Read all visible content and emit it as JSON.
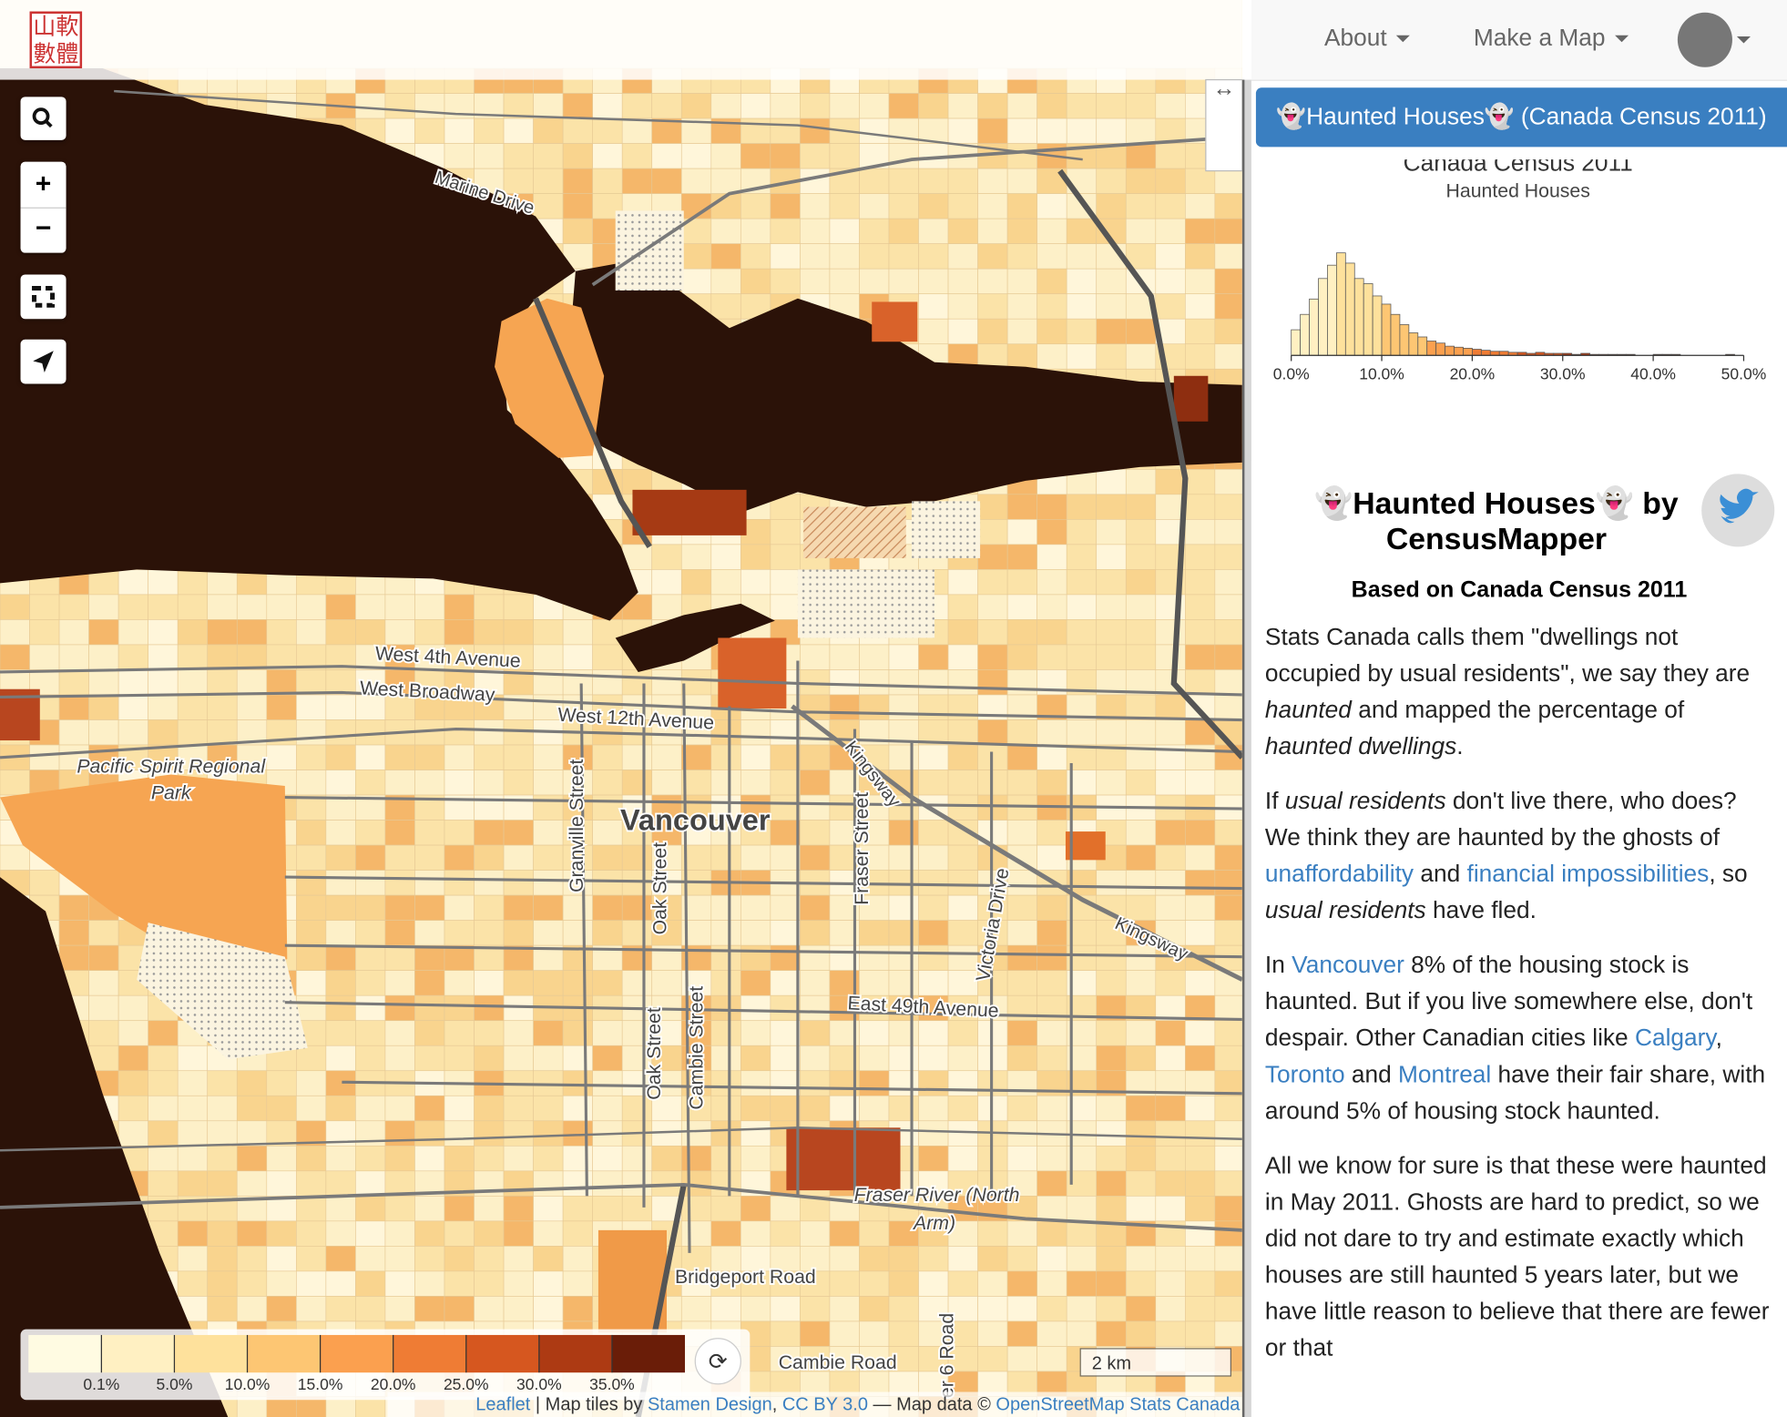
{
  "nav": {
    "logo": [
      "山軟",
      "數體"
    ],
    "menu": [
      "About",
      "Make a Map"
    ]
  },
  "map": {
    "labels": [
      "Marine Drive",
      "West 4th Avenue",
      "West Broadway",
      "West 12th Avenue",
      "Kingsway",
      "Kingsway",
      "Pacific Spirit Regional",
      "Park",
      "Vancouver",
      "Granville Street",
      "Oak Street",
      "Fraser Street",
      "Victoria Drive",
      "East 49th Avenue",
      "Oak Street",
      "Cambie Street",
      "Fraser River (North",
      "Arm)",
      "Bridgeport Road",
      "Cambie Road",
      "er 6 Road"
    ],
    "scale": "2 km",
    "attribution": [
      "Leaflet",
      " | Map tiles by ",
      "Stamen Design",
      ", ",
      "CC BY 3.0",
      " — Map data © ",
      "OpenStreetMap Stats Canada"
    ]
  },
  "legend": {
    "colors": [
      "#fffbe2",
      "#fff0c2",
      "#fee19c",
      "#fdc673",
      "#fba04f",
      "#ef7c34",
      "#d6571f",
      "#ad3a13",
      "#6a1d08"
    ],
    "breaks": [
      {
        "value": 0.1,
        "label": "0.1%"
      },
      {
        "value": 5,
        "label": "5.0%"
      },
      {
        "value": 10,
        "label": "10.0%"
      },
      {
        "value": 15,
        "label": "15.0%"
      },
      {
        "value": 20,
        "label": "20.0%"
      },
      {
        "value": 25,
        "label": "25.0%"
      },
      {
        "value": 30,
        "label": "30.0%"
      },
      {
        "value": 35,
        "label": "35.0%"
      }
    ]
  },
  "sidebar": {
    "button": "👻Haunted Houses👻 (Canada Census 2011)"
  },
  "chart_data": {
    "type": "histogram",
    "title": "Canada Census 2011",
    "subtitle": "Haunted Houses",
    "bins": [
      0,
      1,
      2,
      3,
      4,
      5,
      6,
      7,
      8,
      9,
      10,
      11,
      12,
      13,
      14,
      15,
      16,
      17,
      18,
      19,
      20,
      21,
      22,
      23,
      24,
      25,
      26,
      27,
      28,
      29,
      30,
      31,
      32,
      33,
      34,
      35,
      36,
      37,
      38,
      39,
      40,
      41,
      42,
      43,
      44,
      45,
      46,
      47,
      48,
      49,
      50
    ],
    "values": [
      25,
      40,
      55,
      75,
      88,
      100,
      90,
      75,
      70,
      58,
      50,
      40,
      30,
      22,
      18,
      14,
      12,
      9,
      8,
      7,
      6,
      5,
      4,
      4,
      3,
      3,
      2,
      3,
      2,
      2,
      2,
      1,
      2,
      1,
      1,
      1,
      1,
      1,
      0,
      0,
      1,
      1,
      1,
      0,
      0,
      0,
      0,
      0,
      1,
      0
    ],
    "xlim": [
      0,
      50
    ],
    "xticks": [
      {
        "value": 0,
        "label": "0.0%"
      },
      {
        "value": 10,
        "label": "10.0%"
      },
      {
        "value": 20,
        "label": "20.0%"
      },
      {
        "value": 30,
        "label": "30.0%"
      },
      {
        "value": 40,
        "label": "40.0%"
      },
      {
        "value": 50,
        "label": "50.0%"
      }
    ]
  },
  "article": {
    "title": [
      "👻Haunted Houses👻 by",
      "CensusMapper"
    ],
    "subtitle": "Based on Canada Census 2011",
    "paragraphs": [
      [
        "Stats Canada calls them \"dwellings not occupied by usual residents\", we say they are ",
        "haunted",
        " and mapped the percentage of ",
        "haunted dwellings",
        "."
      ],
      [
        "If ",
        "usual residents",
        " don't live there, who does? We think they are haunted by the ghosts of ",
        "unaffordability",
        " and ",
        "financial impossibilities",
        ", so ",
        "usual residents",
        " have fled."
      ],
      [
        "In ",
        "Vancouver",
        " 8% of the housing stock is haunted. But if you live somewhere else, don't despair. Other Canadian cities like ",
        "Calgary",
        ", ",
        "Toronto",
        " and ",
        "Montreal",
        " have their fair share, with around 5% of housing stock haunted."
      ],
      [
        "All we know for sure is that these were haunted in May 2011. Ghosts are hard to predict, so we did not dare to try and estimate exactly which houses are still haunted 5 years later, but we have little reason to believe that there are fewer or that"
      ]
    ]
  }
}
